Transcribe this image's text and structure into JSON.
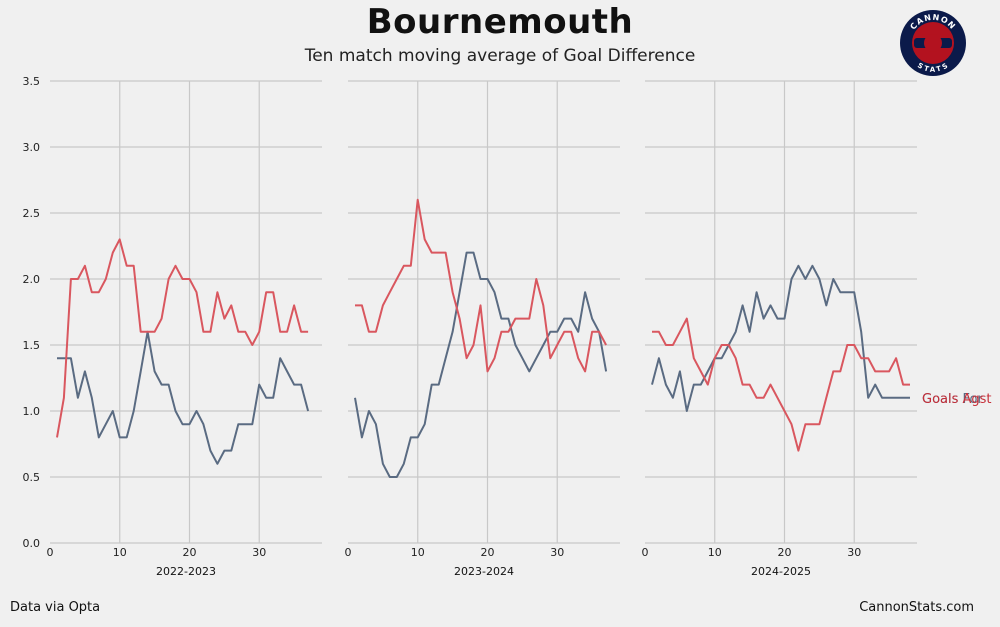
{
  "header": {
    "title": "Bournemouth",
    "subtitle": "Ten match moving average of Goal Difference"
  },
  "footer": {
    "left": "Data via Opta",
    "right": "CannonStats.com"
  },
  "logo": {
    "top_text": "CANNON",
    "bottom_text": "STATS",
    "colors": {
      "ring": "#0b1a4a",
      "inner": "#b3121f",
      "accent": "#ffffff"
    }
  },
  "colors": {
    "goals_for": "#5a6b82",
    "goals_against": "#d9575f",
    "label_against": "#c6303a",
    "grid": "#c8c8c8"
  },
  "chart_data": {
    "type": "line",
    "ylim": [
      0,
      3.5
    ],
    "yticks": [
      "0.0",
      "0.5",
      "1.0",
      "1.5",
      "2.0",
      "2.5",
      "3.0",
      "3.5"
    ],
    "xlim": [
      0,
      39
    ],
    "xticks": [
      "0",
      "10",
      "20",
      "30"
    ],
    "panels": [
      {
        "label": "2022-2023",
        "series": [
          {
            "key": "for",
            "x": [
              1,
              2,
              3,
              4,
              5,
              6,
              7,
              8,
              9,
              10,
              11,
              12,
              13,
              14,
              15,
              16,
              17,
              18,
              19,
              20,
              21,
              22,
              23,
              24,
              25,
              26,
              27,
              28,
              29,
              30,
              31,
              32,
              33,
              34,
              35,
              36,
              37
            ],
            "y": [
              1.4,
              1.4,
              1.4,
              1.1,
              1.3,
              1.1,
              0.8,
              0.9,
              1.0,
              0.8,
              0.8,
              1.0,
              1.3,
              1.6,
              1.3,
              1.2,
              1.2,
              1.0,
              0.9,
              0.9,
              1.0,
              0.9,
              0.7,
              0.6,
              0.7,
              0.7,
              0.9,
              0.9,
              0.9,
              1.2,
              1.1,
              1.1,
              1.4,
              1.3,
              1.2,
              1.2,
              1.0
            ]
          },
          {
            "key": "against",
            "x": [
              1,
              2,
              3,
              4,
              5,
              6,
              7,
              8,
              9,
              10,
              11,
              12,
              13,
              14,
              15,
              16,
              17,
              18,
              19,
              20,
              21,
              22,
              23,
              24,
              25,
              26,
              27,
              28,
              29,
              30,
              31,
              32,
              33,
              34,
              35,
              36,
              37
            ],
            "y": [
              0.8,
              1.1,
              2.0,
              2.0,
              2.1,
              1.9,
              1.9,
              2.0,
              2.2,
              2.3,
              2.1,
              2.1,
              1.6,
              1.6,
              1.6,
              1.7,
              2.0,
              2.1,
              2.0,
              2.0,
              1.9,
              1.6,
              1.6,
              1.9,
              1.7,
              1.8,
              1.6,
              1.6,
              1.5,
              1.6,
              1.9,
              1.9,
              1.6,
              1.6,
              1.8,
              1.6,
              1.6
            ]
          }
        ]
      },
      {
        "label": "2023-2024",
        "series": [
          {
            "key": "for",
            "x": [
              1,
              2,
              3,
              4,
              5,
              6,
              7,
              8,
              9,
              10,
              11,
              12,
              13,
              14,
              15,
              16,
              17,
              18,
              19,
              20,
              21,
              22,
              23,
              24,
              25,
              26,
              27,
              28,
              29,
              30,
              31,
              32,
              33,
              34,
              35,
              36,
              37
            ],
            "y": [
              1.1,
              0.8,
              1.0,
              0.9,
              0.6,
              0.5,
              0.5,
              0.6,
              0.8,
              0.8,
              0.9,
              1.2,
              1.2,
              1.4,
              1.6,
              1.9,
              2.2,
              2.2,
              2.0,
              2.0,
              1.9,
              1.7,
              1.7,
              1.5,
              1.4,
              1.3,
              1.4,
              1.5,
              1.6,
              1.6,
              1.7,
              1.7,
              1.6,
              1.9,
              1.7,
              1.6,
              1.3
            ]
          },
          {
            "key": "against",
            "x": [
              1,
              2,
              3,
              4,
              5,
              6,
              7,
              8,
              9,
              10,
              11,
              12,
              13,
              14,
              15,
              16,
              17,
              18,
              19,
              20,
              21,
              22,
              23,
              24,
              25,
              26,
              27,
              28,
              29,
              30,
              31,
              32,
              33,
              34,
              35,
              36,
              37
            ],
            "y": [
              1.8,
              1.8,
              1.6,
              1.6,
              1.8,
              1.9,
              2.0,
              2.1,
              2.1,
              2.6,
              2.3,
              2.2,
              2.2,
              2.2,
              1.9,
              1.7,
              1.4,
              1.5,
              1.8,
              1.3,
              1.4,
              1.6,
              1.6,
              1.7,
              1.7,
              1.7,
              2.0,
              1.8,
              1.4,
              1.5,
              1.6,
              1.6,
              1.4,
              1.3,
              1.6,
              1.6,
              1.5
            ]
          }
        ]
      },
      {
        "label": "2024-2025",
        "series": [
          {
            "key": "for",
            "x": [
              1,
              2,
              3,
              4,
              5,
              6,
              7,
              8,
              9,
              10,
              11,
              12,
              13,
              14,
              15,
              16,
              17,
              18,
              19,
              20,
              21,
              22,
              23,
              24,
              25,
              26,
              27,
              28,
              29,
              30,
              31,
              32,
              33,
              34,
              35,
              36,
              37,
              38
            ],
            "y": [
              1.2,
              1.4,
              1.2,
              1.1,
              1.3,
              1.0,
              1.2,
              1.2,
              1.3,
              1.4,
              1.4,
              1.5,
              1.6,
              1.8,
              1.6,
              1.9,
              1.7,
              1.8,
              1.7,
              1.7,
              2.0,
              2.1,
              2.0,
              2.1,
              2.0,
              1.8,
              2.0,
              1.9,
              1.9,
              1.9,
              1.6,
              1.1,
              1.2,
              1.1,
              1.1,
              1.1,
              1.1,
              1.1
            ]
          },
          {
            "key": "against",
            "x": [
              1,
              2,
              3,
              4,
              5,
              6,
              7,
              8,
              9,
              10,
              11,
              12,
              13,
              14,
              15,
              16,
              17,
              18,
              19,
              20,
              21,
              22,
              23,
              24,
              25,
              26,
              27,
              28,
              29,
              30,
              31,
              32,
              33,
              34,
              35,
              36,
              37,
              38
            ],
            "y": [
              1.6,
              1.6,
              1.5,
              1.5,
              1.6,
              1.7,
              1.4,
              1.3,
              1.2,
              1.4,
              1.5,
              1.5,
              1.4,
              1.2,
              1.2,
              1.1,
              1.1,
              1.2,
              1.1,
              1.0,
              0.9,
              0.7,
              0.9,
              0.9,
              0.9,
              1.1,
              1.3,
              1.3,
              1.5,
              1.5,
              1.4,
              1.4,
              1.3,
              1.3,
              1.3,
              1.4,
              1.2,
              1.2
            ]
          }
        ]
      }
    ],
    "end_labels": {
      "for": "Goals For",
      "against": "Goals Agst"
    }
  }
}
